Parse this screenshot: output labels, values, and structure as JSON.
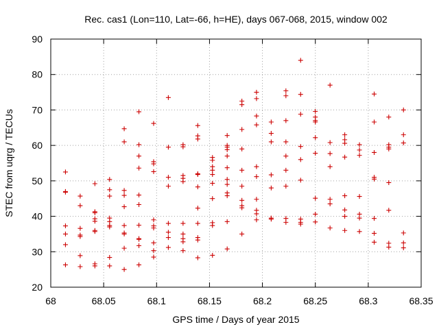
{
  "chart_data": {
    "type": "scatter",
    "title": "Rec. cas1 (Lon=110, Lat=-66, h=HE), days 067-068, 2015, window 002",
    "xlabel": "GPS time / Days of year 2015",
    "ylabel": "STEC from uqrg / TECUs",
    "xlim": [
      68,
      68.35
    ],
    "ylim": [
      20,
      90
    ],
    "xticks": [
      "68",
      "68.05",
      "68.1",
      "68.15",
      "68.2",
      "68.25",
      "68.3",
      "68.35"
    ],
    "yticks": [
      "20",
      "30",
      "40",
      "50",
      "60",
      "70",
      "80",
      "90"
    ],
    "grid": true,
    "marker": "plus",
    "color": "#cc0000",
    "columns": [
      {
        "x": 68.0139,
        "y": [
          52.5,
          47.0,
          46.8,
          37.3,
          35.0,
          32.0,
          26.3
        ]
      },
      {
        "x": 68.0278,
        "y": [
          45.7,
          43.0,
          36.6,
          34.7,
          34.3,
          28.9,
          25.8
        ]
      },
      {
        "x": 68.0417,
        "y": [
          49.2,
          41.3,
          41.0,
          39.3,
          38.6,
          36.0,
          35.7,
          26.6,
          26.0
        ]
      },
      {
        "x": 68.0556,
        "y": [
          50.4,
          47.5,
          45.7,
          39.5,
          38.5,
          37.4,
          37.0,
          28.4,
          26.0
        ]
      },
      {
        "x": 68.0694,
        "y": [
          64.7,
          61.0,
          47.3,
          45.9,
          42.7,
          37.4,
          35.3,
          35.0,
          31.0,
          25.0
        ]
      },
      {
        "x": 68.0833,
        "y": [
          69.5,
          60.2,
          57.0,
          53.6,
          46.0,
          43.3,
          37.5,
          33.7,
          33.5,
          31.7,
          26.3
        ]
      },
      {
        "x": 68.0972,
        "y": [
          66.2,
          55.4,
          54.8,
          52.6,
          39.0,
          37.3,
          36.7,
          32.5,
          30.3,
          28.5
        ]
      },
      {
        "x": 68.1111,
        "y": [
          73.5,
          59.5,
          51.0,
          48.5,
          38.0,
          35.5,
          34.0,
          31.2
        ]
      },
      {
        "x": 68.125,
        "y": [
          60.2,
          59.6,
          51.5,
          50.7,
          49.8,
          38.0,
          35.0,
          33.7,
          32.8,
          30.3
        ]
      },
      {
        "x": 68.1389,
        "y": [
          65.6,
          62.7,
          61.8,
          52.0,
          51.8,
          48.3,
          42.3,
          38.0,
          34.0,
          33.3,
          28.3
        ]
      },
      {
        "x": 68.1528,
        "y": [
          56.6,
          55.8,
          54.0,
          53.0,
          51.8,
          49.3,
          45.0,
          38.2,
          37.4,
          29.0
        ]
      },
      {
        "x": 68.1667,
        "y": [
          62.8,
          60.0,
          59.5,
          58.8,
          57.0,
          53.7,
          50.4,
          49.0,
          46.6,
          45.8,
          38.5,
          30.8
        ]
      },
      {
        "x": 68.1806,
        "y": [
          72.5,
          71.5,
          64.5,
          59.0,
          53.0,
          48.5,
          44.5,
          43.0,
          42.4,
          35.0
        ]
      },
      {
        "x": 68.1944,
        "y": [
          75.0,
          73.2,
          68.3,
          65.8,
          54.0,
          51.2,
          44.8,
          41.7,
          40.7,
          39.0
        ]
      },
      {
        "x": 68.2083,
        "y": [
          66.6,
          63.4,
          61.0,
          51.7,
          48.0,
          39.5,
          39.2
        ]
      },
      {
        "x": 68.2222,
        "y": [
          75.4,
          74.0,
          67.0,
          61.0,
          57.0,
          53.0,
          48.5,
          39.4,
          38.3
        ]
      },
      {
        "x": 68.2361,
        "y": [
          84.0,
          74.4,
          68.8,
          59.7,
          56.0,
          50.2,
          39.2,
          38.3,
          37.8
        ]
      },
      {
        "x": 68.25,
        "y": [
          69.6,
          68.0,
          67.0,
          66.6,
          62.2,
          57.8,
          45.1,
          40.6,
          38.4
        ]
      },
      {
        "x": 68.2639,
        "y": [
          77.0,
          60.8,
          57.7,
          54.0,
          44.8,
          43.5,
          36.7
        ]
      },
      {
        "x": 68.2778,
        "y": [
          63.0,
          61.6,
          60.6,
          56.7,
          45.8,
          41.8,
          40.0,
          36.0
        ]
      },
      {
        "x": 68.2917,
        "y": [
          60.2,
          58.7,
          57.2,
          45.6,
          40.6,
          39.5,
          35.7
        ]
      },
      {
        "x": 68.3056,
        "y": [
          74.5,
          66.6,
          58.0,
          51.0,
          50.5,
          39.4,
          35.2,
          32.7
        ]
      },
      {
        "x": 68.3194,
        "y": [
          68.0,
          60.2,
          59.5,
          59.0,
          49.5,
          41.7,
          32.4,
          31.3
        ]
      },
      {
        "x": 68.3333,
        "y": [
          70.0,
          63.0,
          60.7,
          35.3,
          32.5,
          31.1
        ]
      }
    ]
  }
}
